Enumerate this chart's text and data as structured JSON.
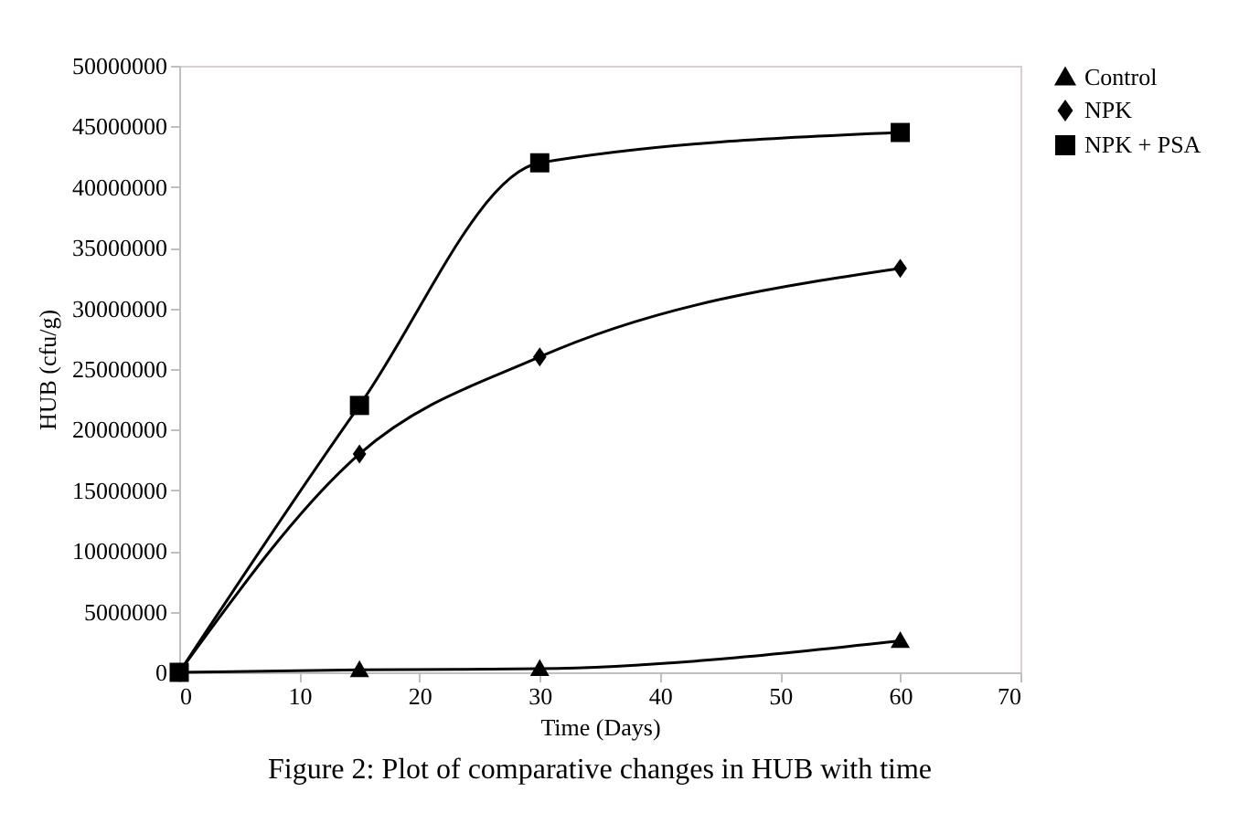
{
  "chart_data": {
    "type": "line",
    "xlabel": "Time (Days)",
    "ylabel": "HUB (cfu/g)",
    "x": [
      0,
      15,
      30,
      60
    ],
    "xlim": [
      0,
      70
    ],
    "xticks": [
      0,
      10,
      20,
      30,
      40,
      50,
      60,
      70
    ],
    "ylim": [
      0,
      50000000
    ],
    "yticks": [
      0,
      5000000,
      10000000,
      15000000,
      20000000,
      25000000,
      30000000,
      35000000,
      40000000,
      45000000,
      50000000
    ],
    "grid": false,
    "legend": "right",
    "line_style": "solid",
    "annotations": [
      "Figure 2: Plot of comparative changes in HUB with time"
    ],
    "series": [
      {
        "name": "Control",
        "color": "#000000",
        "marker": "triangle",
        "values": [
          0,
          200000,
          300000,
          2600000
        ]
      },
      {
        "name": "NPK",
        "color": "#000000",
        "marker": "diamond",
        "values": [
          0,
          18000000,
          26000000,
          33300000
        ]
      },
      {
        "name": "NPK + PSA",
        "color": "#000000",
        "marker": "square",
        "values": [
          0,
          22000000,
          42000000,
          44500000
        ]
      }
    ]
  }
}
